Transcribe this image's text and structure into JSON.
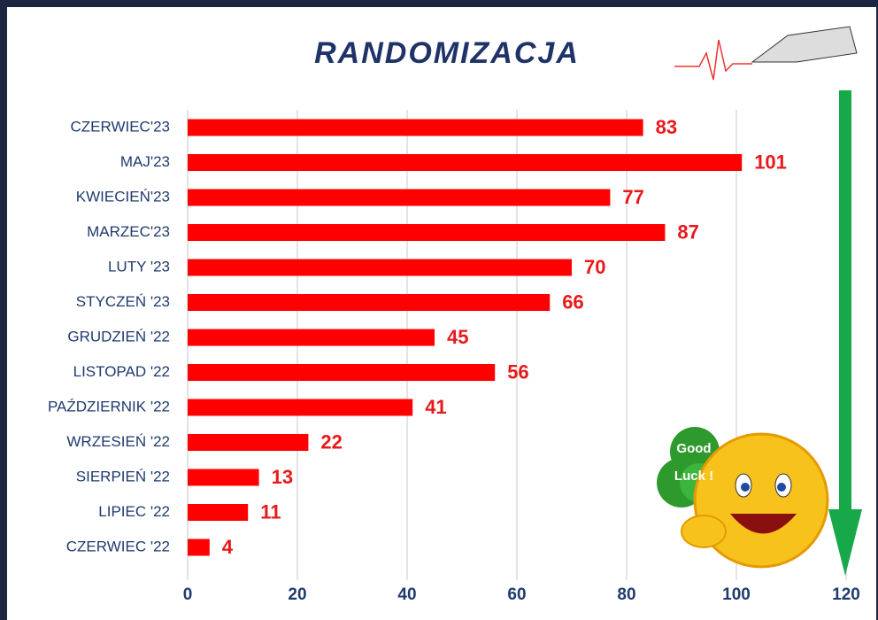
{
  "chart_data": {
    "type": "barh",
    "title": "RANDOMIZACJA",
    "categories": [
      "CZERWIEC'23",
      "MAJ'23",
      "KWIECIEŃ'23",
      "MARZEC'23",
      "LUTY '23",
      "STYCZEŃ '23",
      "GRUDZIEŃ '22",
      "LISTOPAD '22",
      "PAŹDZIERNIK '22",
      "WRZESIEŃ '22",
      "SIERPIEŃ '22",
      "LIPIEC '22",
      "CZERWIEC '22"
    ],
    "values": [
      83,
      101,
      77,
      87,
      70,
      66,
      45,
      56,
      41,
      22,
      13,
      11,
      4
    ],
    "color": "#ff0000",
    "xlim": [
      0,
      120
    ],
    "xticks": [
      0,
      20,
      40,
      60,
      80,
      100,
      120
    ],
    "grid": true
  },
  "image_text": [
    "Good",
    "Luck !"
  ]
}
